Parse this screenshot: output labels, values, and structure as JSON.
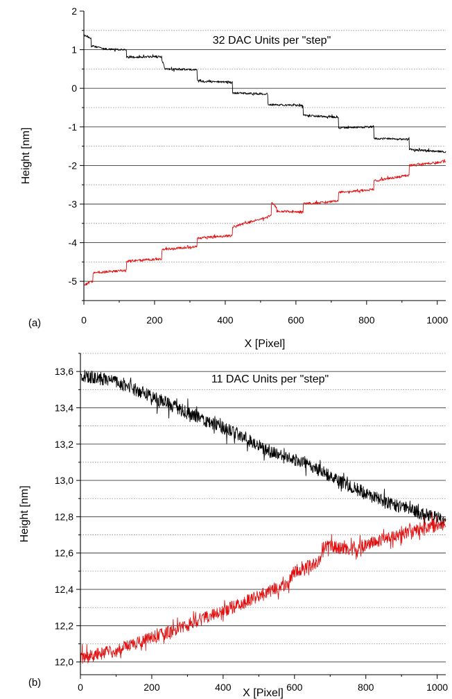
{
  "chart_data": [
    {
      "type": "line",
      "panel_label": "(a)",
      "annotation": "32 DAC Units per \"step\"",
      "xlabel": "X [Pixel]",
      "ylabel": "Height [nm]",
      "xlim": [
        0,
        1024
      ],
      "ylim": [
        -5.5,
        2
      ],
      "x_ticks": [
        0,
        200,
        400,
        600,
        800,
        1000
      ],
      "x_tick_labels": [
        "0",
        "200",
        "400",
        "600",
        "800",
        "1000"
      ],
      "y_ticks": [
        -5,
        -4,
        -3,
        -2,
        -1,
        0,
        1,
        2
      ],
      "y_tick_labels": [
        "-5",
        "-4",
        "-3",
        "-2",
        "-1",
        "0",
        "1",
        "2"
      ],
      "grid": {
        "major": "solid",
        "minor": "dotted",
        "minor_step": 0.5
      },
      "series": [
        {
          "color": "#000000",
          "noise": 0.025,
          "x": [
            0,
            20,
            20,
            50,
            50,
            120,
            120,
            220,
            220,
            230,
            230,
            320,
            320,
            330,
            330,
            420,
            420,
            520,
            520,
            620,
            620,
            720,
            720,
            820,
            820,
            920,
            920,
            1024
          ],
          "y": [
            1.38,
            1.3,
            1.1,
            1.05,
            1.02,
            1.0,
            0.8,
            0.82,
            0.75,
            0.5,
            0.5,
            0.48,
            0.22,
            0.2,
            0.18,
            0.16,
            -0.12,
            -0.15,
            -0.42,
            -0.45,
            -0.7,
            -0.75,
            -1.02,
            -1.0,
            -1.3,
            -1.32,
            -1.58,
            -1.65
          ]
        },
        {
          "color": "#e01010",
          "noise": 0.03,
          "x": [
            0,
            25,
            25,
            120,
            120,
            220,
            220,
            320,
            320,
            420,
            420,
            530,
            530,
            545,
            545,
            620,
            620,
            720,
            720,
            820,
            820,
            920,
            920,
            1024
          ],
          "y": [
            -5.1,
            -5.0,
            -4.78,
            -4.72,
            -4.48,
            -4.42,
            -4.18,
            -4.1,
            -3.88,
            -3.82,
            -3.6,
            -3.3,
            -2.95,
            -3.1,
            -3.18,
            -3.2,
            -3.0,
            -2.92,
            -2.7,
            -2.62,
            -2.4,
            -2.25,
            -2.0,
            -1.9
          ]
        }
      ]
    },
    {
      "type": "line",
      "panel_label": "(b)",
      "annotation": "11 DAC Units per \"step\"",
      "xlabel": "X [Pixel]",
      "ylabel": "Height [nm]",
      "xlim": [
        0,
        1024
      ],
      "ylim": [
        11.93,
        13.7
      ],
      "x_ticks": [
        0,
        200,
        400,
        600,
        800,
        1000
      ],
      "x_tick_labels": [
        "0",
        "200",
        "400",
        "600",
        "800",
        "1000"
      ],
      "y_ticks": [
        12.0,
        12.2,
        12.4,
        12.6,
        12.8,
        13.0,
        13.2,
        13.4,
        13.6
      ],
      "y_tick_labels": [
        "12,0",
        "12,2",
        "12,4",
        "12,6",
        "12,8",
        "13,0",
        "13,2",
        "13,4",
        "13,6"
      ],
      "grid": {
        "major": "solid",
        "minor": "dotted",
        "minor_step": 0.1
      },
      "series": [
        {
          "color": "#000000",
          "noise": 0.035,
          "x": [
            0,
            90,
            180,
            270,
            360,
            450,
            540,
            630,
            720,
            810,
            900,
            1024
          ],
          "y": [
            13.58,
            13.55,
            13.48,
            13.4,
            13.32,
            13.25,
            13.15,
            13.1,
            13.0,
            12.92,
            12.85,
            12.78
          ]
        },
        {
          "color": "#e01010",
          "noise": 0.035,
          "x": [
            0,
            90,
            180,
            270,
            360,
            450,
            540,
            580,
            600,
            670,
            680,
            760,
            850,
            940,
            1024
          ],
          "y": [
            12.02,
            12.06,
            12.12,
            12.18,
            12.25,
            12.32,
            12.4,
            12.42,
            12.5,
            12.55,
            12.64,
            12.62,
            12.68,
            12.73,
            12.76
          ]
        }
      ]
    }
  ]
}
